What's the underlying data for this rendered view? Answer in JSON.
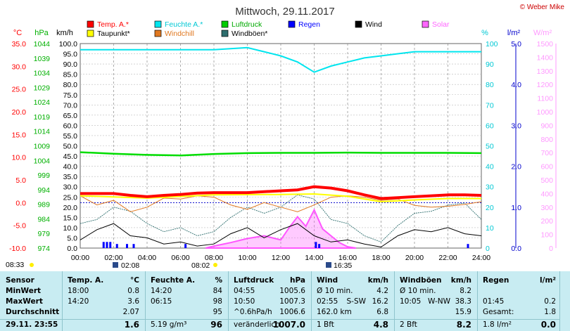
{
  "title": "Mittwoch, 29.11.2017",
  "credit": "© Weber Mike",
  "colors": {
    "temp": "#ff0000",
    "feuchte": "#00e5ee",
    "luftdruck": "#00cc00",
    "regen": "#0000ff",
    "wind": "#000000",
    "solar": "#ff66ff",
    "taupunkt": "#ffff00",
    "windchill": "#e07820",
    "windboeen": "#2e6e6e",
    "gridline": "#999999",
    "axis_blue": "#0000cc"
  },
  "legend": [
    {
      "label": "Temp. A.*",
      "color": "#ff0000"
    },
    {
      "label": "Feuchte A.*",
      "color": "#00e5ee"
    },
    {
      "label": "Luftdruck",
      "color": "#00cc00"
    },
    {
      "label": "Regen",
      "color": "#0000ff"
    },
    {
      "label": "Wind",
      "color": "#000000"
    },
    {
      "label": "Solar",
      "color": "#ff66ff"
    },
    {
      "label": "Taupunkt*",
      "color": "#ffff00"
    },
    {
      "label": "Windchill",
      "color": "#e07820"
    },
    {
      "label": "Windböen*",
      "color": "#2e6e6e"
    }
  ],
  "axis_units": {
    "temp": "°C",
    "press": "hPa",
    "wind": "km/h",
    "hum": "%",
    "rain": "l/m²",
    "solar": "W/m²"
  },
  "axis_ticks": {
    "temp": [
      "35.0",
      "30.0",
      "25.0",
      "20.0",
      "15.0",
      "10.0",
      "5.0",
      "0.0",
      "-5.0",
      "-10.0"
    ],
    "press": [
      "1044",
      "1039",
      "1034",
      "1029",
      "1024",
      "1019",
      "1014",
      "1009",
      "1004",
      "999",
      "994",
      "989",
      "984",
      "979",
      "974"
    ],
    "wind": [
      "100.0",
      "95.0",
      "90.0",
      "85.0",
      "80.0",
      "75.0",
      "70.0",
      "65.0",
      "60.0",
      "55.0",
      "50.0",
      "45.0",
      "40.0",
      "35.0",
      "30.0",
      "25.0",
      "20.0",
      "15.0",
      "10.0",
      "5.0",
      "0.0"
    ],
    "hum": [
      "100",
      "90",
      "80",
      "70",
      "60",
      "50",
      "40",
      "30",
      "20",
      "10",
      "0"
    ],
    "rain": [
      "5.0",
      "4.0",
      "3.0",
      "2.0",
      "1.0",
      "0.0"
    ],
    "solar": [
      "1500",
      "1400",
      "1300",
      "1200",
      "1100",
      "1000",
      "900",
      "800",
      "700",
      "600",
      "500",
      "400",
      "300",
      "200",
      "100",
      "0"
    ],
    "time": [
      "00:00",
      "02:00",
      "04:00",
      "06:00",
      "08:00",
      "10:00",
      "12:00",
      "14:00",
      "16:00",
      "18:00",
      "20:00",
      "22:00",
      "24:00"
    ]
  },
  "sun_marks": [
    {
      "label": "08:33"
    },
    {
      "label": "02:08"
    },
    {
      "label": "08:02"
    },
    {
      "label": "16:35"
    }
  ],
  "chart_data": {
    "type": "line",
    "title": "Mittwoch, 29.11.2017",
    "xlabel": "",
    "ylabel": "",
    "x_range": [
      "00:00",
      "24:00"
    ],
    "grid": true,
    "legend_position": "top",
    "series": [
      {
        "name": "Temp. A.*",
        "unit": "°C",
        "x": [
          0,
          2,
          3,
          4,
          5,
          6,
          7,
          8,
          9,
          10,
          11,
          12,
          13,
          14,
          15,
          16,
          17,
          18,
          19,
          20,
          21,
          22,
          23,
          24
        ],
        "y": [
          2.0,
          2.0,
          1.6,
          1.3,
          1.6,
          1.8,
          2.1,
          2.2,
          2.2,
          2.2,
          2.4,
          2.6,
          2.8,
          3.5,
          3.2,
          2.6,
          1.7,
          0.9,
          1.1,
          1.3,
          1.5,
          1.7,
          1.7,
          1.6
        ]
      },
      {
        "name": "Feuchte A.*",
        "unit": "%",
        "x": [
          0,
          2,
          4,
          6,
          8,
          10,
          11,
          12,
          13,
          14,
          15,
          16,
          17,
          18,
          19,
          20,
          22,
          24
        ],
        "y": [
          97,
          97,
          97,
          97,
          97,
          98,
          96,
          94,
          91,
          86,
          89,
          91,
          93,
          94,
          95,
          96,
          96,
          96
        ]
      },
      {
        "name": "Luftdruck",
        "unit": "hPa",
        "x": [
          0,
          2,
          4,
          6,
          8,
          10,
          12,
          14,
          16,
          18,
          20,
          22,
          24
        ],
        "y": [
          1006.8,
          1006.3,
          1005.9,
          1005.7,
          1006.2,
          1006.5,
          1006.6,
          1006.6,
          1006.7,
          1006.6,
          1006.6,
          1006.6,
          1006.5
        ]
      },
      {
        "name": "Taupunkt*",
        "unit": "°C",
        "x": [
          0,
          4,
          8,
          12,
          14,
          16,
          18,
          20,
          22,
          24
        ],
        "y": [
          1.5,
          1.0,
          1.7,
          1.8,
          1.9,
          1.4,
          0.2,
          0.6,
          0.9,
          0.9
        ]
      },
      {
        "name": "Wind",
        "unit": "km/h",
        "x": [
          0,
          1,
          2,
          3,
          4,
          5,
          6,
          7,
          8,
          9,
          10,
          11,
          12,
          13,
          14,
          15,
          16,
          17,
          18,
          19,
          20,
          21,
          22,
          23,
          24
        ],
        "y": [
          4,
          9,
          12,
          6,
          5,
          2,
          3,
          1,
          2,
          7,
          10,
          5,
          9,
          12,
          6,
          3,
          4,
          2,
          0.5,
          6,
          9,
          8,
          10,
          7,
          6
        ]
      },
      {
        "name": "Windböen*",
        "unit": "km/h",
        "x": [
          0,
          1,
          2,
          3,
          4,
          5,
          6,
          7,
          8,
          9,
          10,
          11,
          12,
          13,
          14,
          15,
          16,
          17,
          18,
          19,
          20,
          21,
          22,
          23,
          24
        ],
        "y": [
          12,
          14,
          20,
          18,
          12,
          8,
          10,
          6,
          8,
          15,
          20,
          17,
          20,
          26,
          24,
          14,
          12,
          6,
          3,
          11,
          17,
          18,
          21,
          22,
          14
        ]
      },
      {
        "name": "Windchill",
        "unit": "°C",
        "x": [
          0,
          1,
          2,
          3,
          4,
          5,
          6,
          7,
          8,
          9,
          10,
          11,
          12,
          13,
          14,
          15,
          16,
          17,
          18,
          19,
          20,
          21,
          22,
          23,
          24
        ],
        "y": [
          1.5,
          -0.5,
          0.5,
          -2,
          -1,
          1,
          0.8,
          1.5,
          1.2,
          -0.5,
          -1.5,
          0,
          -1,
          -2,
          -0.5,
          1.2,
          1.5,
          1.2,
          0.5,
          0.8,
          -0.6,
          -1,
          -0.8,
          -0.4,
          0.2
        ]
      },
      {
        "name": "Solar",
        "unit": "W/m²",
        "x": [
          7.5,
          8,
          9,
          10,
          11,
          12,
          12.5,
          13,
          13.5,
          14,
          14.5,
          15,
          15.5,
          16,
          16.5
        ],
        "y": [
          0,
          15,
          40,
          70,
          90,
          60,
          150,
          230,
          160,
          280,
          140,
          90,
          40,
          10,
          0
        ]
      },
      {
        "name": "Regen",
        "unit": "l/m²",
        "x": [
          1.4,
          1.6,
          1.8,
          2.2,
          2.8,
          3.2,
          6.3,
          14.1,
          14.3,
          23.2
        ],
        "y": [
          0.15,
          0.15,
          0.15,
          0.1,
          0.1,
          0.1,
          0.1,
          0.15,
          0.1,
          0.1
        ]
      }
    ]
  },
  "table": {
    "headers": [
      "Sensor",
      "Temp. A.",
      "°C",
      "Feuchte A.",
      "%",
      "Luftdruck",
      "hPa",
      "Wind",
      "km/h",
      "Windböen",
      "km/h",
      "Regen",
      "l/m²"
    ],
    "rows": [
      {
        "label": "MinWert",
        "t_time": "18:00",
        "t_val": "0.8",
        "f_time": "14:20",
        "f_val": "84",
        "l_time": "04:55",
        "l_val": "1005.6",
        "w_desc": "Ø 10 min.",
        "w_dir": "",
        "w_val": "4.2",
        "b_desc": "Ø 10 min.",
        "b_dir": "",
        "b_val": "8.2",
        "r_time": "",
        "r_val": ""
      },
      {
        "label": "MaxWert",
        "t_time": "14:20",
        "t_val": "3.6",
        "f_time": "06:15",
        "f_val": "98",
        "l_time": "10:50",
        "l_val": "1007.3",
        "w_desc": "02:55",
        "w_dir": "S-SW",
        "w_val": "16.2",
        "b_desc": "10:05",
        "b_dir": "W-NW",
        "b_val": "38.3",
        "r_time": "01:45",
        "r_val": "0.2"
      },
      {
        "label": "Durchschnitt",
        "t_time": "",
        "t_val": "2.07",
        "f_time": "",
        "f_val": "95",
        "l_time": "^0.6hPa/h",
        "l_val": "1006.6",
        "w_desc": "162.0 km",
        "w_dir": "",
        "w_val": "6.8",
        "b_desc": "",
        "b_dir": "",
        "b_val": "15.9",
        "r_time": "Gesamt:",
        "r_val": "1.8"
      },
      {
        "label": "29.11. 23:55",
        "t_time": "",
        "t_val": "1.6",
        "f_time": "5.19 g/m³",
        "f_val": "96",
        "l_time": "veränderlich",
        "l_val": "1007.0",
        "w_desc": "1 Bft",
        "w_dir": "",
        "w_val": "4.8",
        "b_desc": "2 Bft",
        "b_dir": "",
        "b_val": "8.2",
        "r_time": "1.8 l/m²",
        "r_val": "0.0"
      }
    ]
  }
}
